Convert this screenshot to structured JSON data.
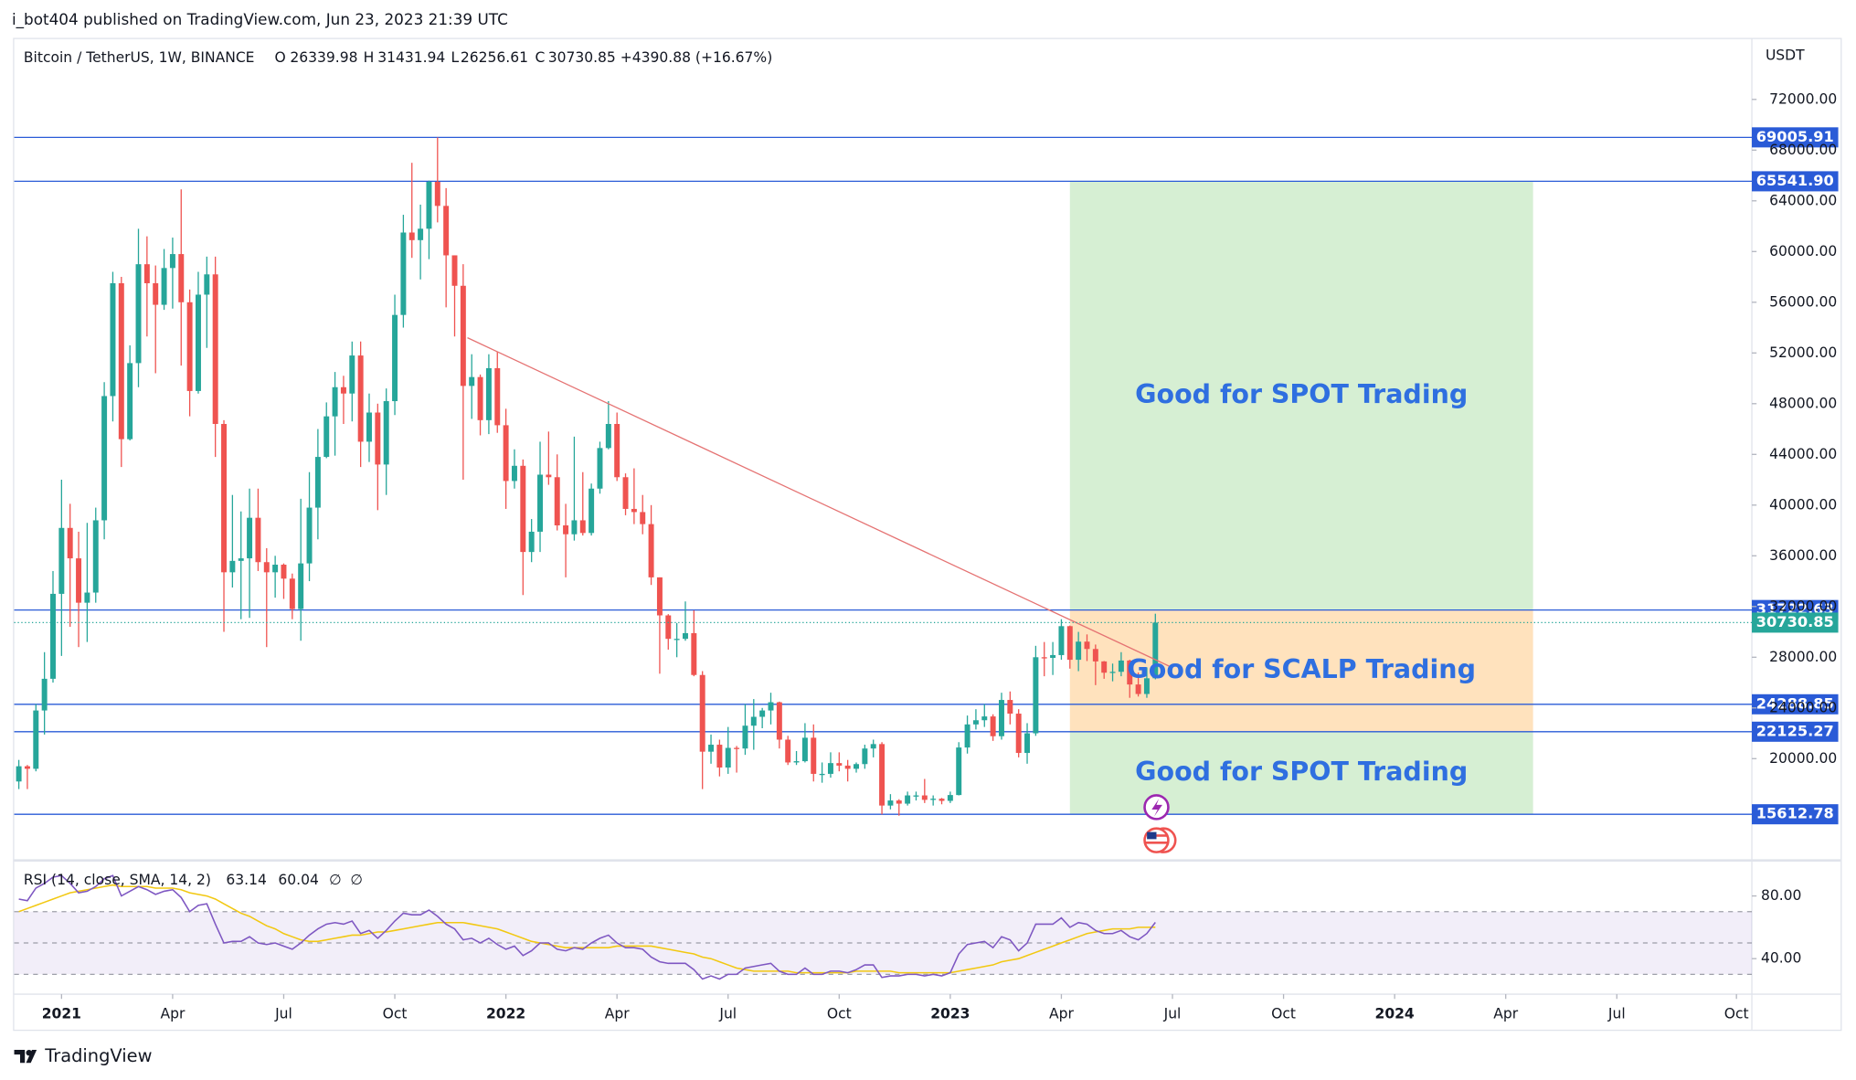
{
  "header": {
    "byline": "i_bot404 published on TradingView.com, Jun 23, 2023 21:39 UTC",
    "footer": "TradingView"
  },
  "chart_data": {
    "type": "candlestick",
    "title": "Bitcoin / TetherUS, 1W, BINANCE",
    "change_label": "+4390.88 (+16.67%)",
    "ohlc_letters": [
      "O",
      "H",
      "L",
      "C"
    ],
    "y_axis_label": "USDT",
    "up_color": "#26a69a",
    "down_color": "#ef5350",
    "x": [
      -5,
      -4,
      -3,
      -2,
      -1,
      0,
      1,
      2,
      3,
      4,
      5,
      6,
      7,
      8,
      9,
      10,
      11,
      12,
      13,
      14,
      15,
      16,
      17,
      18,
      19,
      20,
      21,
      22,
      23,
      24,
      25,
      26,
      27,
      28,
      29,
      30,
      31,
      32,
      33,
      34,
      35,
      36,
      37,
      38,
      39,
      40,
      41,
      42,
      43,
      44,
      45,
      46,
      47,
      48,
      49,
      50,
      51,
      52,
      53,
      54,
      55,
      56,
      57,
      58,
      59,
      60,
      61,
      62,
      63,
      64,
      65,
      66,
      67,
      68,
      69,
      70,
      71,
      72,
      73,
      74,
      75,
      76,
      77,
      78,
      79,
      80,
      81,
      82,
      83,
      84,
      85,
      86,
      87,
      88,
      89,
      90,
      91,
      92,
      93,
      94,
      95,
      96,
      97,
      98,
      99,
      100,
      101,
      102,
      103,
      104,
      105,
      106,
      107,
      108,
      109,
      110,
      111,
      112,
      113,
      114,
      115,
      116,
      117,
      118,
      119,
      120,
      121,
      122,
      123,
      124,
      125,
      126,
      127,
      128
    ],
    "ohlc": [
      [
        18200,
        19900,
        17600,
        19400
      ],
      [
        19400,
        19500,
        17600,
        19200
      ],
      [
        19200,
        24300,
        19000,
        23800
      ],
      [
        23800,
        28400,
        21900,
        26300
      ],
      [
        26300,
        34800,
        26000,
        33000
      ],
      [
        33000,
        42000,
        28100,
        38200
      ],
      [
        38200,
        40100,
        30400,
        35800
      ],
      [
        35800,
        37900,
        28800,
        32300
      ],
      [
        32300,
        38600,
        29200,
        33100
      ],
      [
        33100,
        39800,
        32300,
        38800
      ],
      [
        38800,
        49700,
        37300,
        48600
      ],
      [
        48600,
        58400,
        46600,
        57500
      ],
      [
        57500,
        58000,
        43000,
        45200
      ],
      [
        45200,
        52600,
        45100,
        51200
      ],
      [
        51200,
        61800,
        49300,
        59000
      ],
      [
        59000,
        61200,
        53300,
        57500
      ],
      [
        57500,
        58900,
        50400,
        55800
      ],
      [
        55800,
        60200,
        55400,
        58700
      ],
      [
        58700,
        61100,
        55500,
        59800
      ],
      [
        59800,
        64900,
        51000,
        56000
      ],
      [
        56000,
        57000,
        47000,
        49000
      ],
      [
        49000,
        58400,
        48800,
        56600
      ],
      [
        56600,
        59600,
        52400,
        58200
      ],
      [
        58200,
        59600,
        43800,
        46400
      ],
      [
        46400,
        46700,
        30000,
        34700
      ],
      [
        34700,
        40800,
        33500,
        35600
      ],
      [
        35600,
        39500,
        31000,
        35800
      ],
      [
        35800,
        41300,
        31100,
        39000
      ],
      [
        39000,
        41300,
        34800,
        35500
      ],
      [
        35500,
        36600,
        28800,
        34700
      ],
      [
        34700,
        36000,
        32700,
        35300
      ],
      [
        35300,
        35400,
        32600,
        34200
      ],
      [
        34200,
        34600,
        31000,
        31800
      ],
      [
        31800,
        40500,
        29300,
        35400
      ],
      [
        35400,
        42600,
        34000,
        39800
      ],
      [
        39800,
        46000,
        37300,
        43800
      ],
      [
        43800,
        48100,
        43700,
        47000
      ],
      [
        47000,
        50500,
        43900,
        49300
      ],
      [
        49300,
        50200,
        46400,
        48800
      ],
      [
        48800,
        52900,
        46600,
        51800
      ],
      [
        51800,
        52900,
        43000,
        45000
      ],
      [
        45000,
        48800,
        43400,
        47300
      ],
      [
        47300,
        48000,
        39600,
        43200
      ],
      [
        43200,
        49200,
        40800,
        48200
      ],
      [
        48200,
        56600,
        47100,
        55000
      ],
      [
        55000,
        62900,
        54000,
        61500
      ],
      [
        61500,
        67000,
        59500,
        60900
      ],
      [
        60900,
        63700,
        57800,
        61800
      ],
      [
        61800,
        65600,
        59400,
        65500
      ],
      [
        65500,
        69000,
        62300,
        63600
      ],
      [
        63600,
        65000,
        55600,
        59700
      ],
      [
        59700,
        59700,
        53300,
        57300
      ],
      [
        57300,
        59000,
        42000,
        49400
      ],
      [
        49400,
        51900,
        46800,
        50100
      ],
      [
        50100,
        50300,
        45500,
        46700
      ],
      [
        46700,
        51900,
        45600,
        50800
      ],
      [
        50800,
        52100,
        45700,
        46300
      ],
      [
        46300,
        47600,
        39700,
        41900
      ],
      [
        41900,
        44400,
        41300,
        43100
      ],
      [
        43100,
        43600,
        32900,
        36300
      ],
      [
        36300,
        38900,
        35500,
        37900
      ],
      [
        37900,
        45000,
        36300,
        42400
      ],
      [
        42400,
        45800,
        41600,
        42200
      ],
      [
        42200,
        44000,
        38000,
        38400
      ],
      [
        38400,
        40100,
        34300,
        37700
      ],
      [
        37700,
        45400,
        37200,
        38800
      ],
      [
        38800,
        42600,
        37600,
        37800
      ],
      [
        37800,
        41700,
        37600,
        41300
      ],
      [
        41300,
        45000,
        40900,
        44500
      ],
      [
        44500,
        48200,
        44400,
        46400
      ],
      [
        46400,
        47300,
        41900,
        42200
      ],
      [
        42200,
        42500,
        39200,
        39700
      ],
      [
        39700,
        42900,
        38500,
        39450
      ],
      [
        39450,
        40800,
        37700,
        38500
      ],
      [
        38500,
        40000,
        33700,
        34300
      ],
      [
        34300,
        34300,
        26700,
        31300
      ],
      [
        31300,
        31400,
        28600,
        29450
      ],
      [
        29450,
        30700,
        28000,
        29450
      ],
      [
        29450,
        32400,
        29300,
        29900
      ],
      [
        29900,
        31700,
        26500,
        26600
      ],
      [
        26600,
        26900,
        17600,
        20550
      ],
      [
        20550,
        21900,
        19600,
        21100
      ],
      [
        21100,
        21500,
        18600,
        19300
      ],
      [
        19300,
        22500,
        18800,
        20850
      ],
      [
        20850,
        21000,
        18900,
        20800
      ],
      [
        20800,
        24300,
        20300,
        22600
      ],
      [
        22600,
        24700,
        20700,
        23300
      ],
      [
        23300,
        24000,
        22400,
        23800
      ],
      [
        23800,
        25200,
        22700,
        24450
      ],
      [
        24450,
        24500,
        20800,
        21500
      ],
      [
        21500,
        21800,
        19500,
        19700
      ],
      [
        19700,
        20600,
        19500,
        19800
      ],
      [
        19800,
        22800,
        19700,
        21650
      ],
      [
        21650,
        22700,
        18200,
        18800
      ],
      [
        18800,
        19700,
        18100,
        18800
      ],
      [
        18800,
        20500,
        18500,
        19650
      ],
      [
        19650,
        20500,
        19000,
        19450
      ],
      [
        19450,
        19900,
        18200,
        19200
      ],
      [
        19200,
        19700,
        18900,
        19570
      ],
      [
        19570,
        21100,
        19200,
        20800
      ],
      [
        20800,
        21500,
        20100,
        21150
      ],
      [
        21150,
        21300,
        15600,
        16300
      ],
      [
        16300,
        17200,
        16000,
        16700
      ],
      [
        16700,
        16800,
        15500,
        16450
      ],
      [
        16450,
        17400,
        16300,
        17100
      ],
      [
        17100,
        17400,
        16700,
        17100
      ],
      [
        17100,
        18400,
        16500,
        16750
      ],
      [
        16750,
        17100,
        16300,
        16840
      ],
      [
        16840,
        16900,
        16400,
        16670
      ],
      [
        16670,
        17400,
        16500,
        17130
      ],
      [
        17130,
        21300,
        17100,
        20880
      ],
      [
        20880,
        23400,
        20400,
        22700
      ],
      [
        22700,
        23900,
        22300,
        23030
      ],
      [
        23030,
        24300,
        22500,
        23330
      ],
      [
        23330,
        23500,
        21400,
        21770
      ],
      [
        21770,
        25200,
        21500,
        24630
      ],
      [
        24630,
        25300,
        22700,
        23550
      ],
      [
        23550,
        23900,
        20100,
        20450
      ],
      [
        20450,
        22800,
        19600,
        22000
      ],
      [
        22000,
        28900,
        21800,
        28000
      ],
      [
        28000,
        29200,
        26500,
        27950
      ],
      [
        27950,
        29200,
        26600,
        28170
      ],
      [
        28170,
        31000,
        27800,
        30450
      ],
      [
        30450,
        30500,
        27100,
        27800
      ],
      [
        27800,
        30000,
        26900,
        29230
      ],
      [
        29230,
        29800,
        27700,
        28650
      ],
      [
        28650,
        29000,
        25800,
        27670
      ],
      [
        27670,
        27700,
        26300,
        26780
      ],
      [
        26780,
        27500,
        26100,
        26850
      ],
      [
        26850,
        28400,
        26500,
        27740
      ],
      [
        27740,
        27800,
        24800,
        25850
      ],
      [
        25850,
        26800,
        24900,
        25100
      ],
      [
        25100,
        27200,
        24800,
        26340
      ],
      [
        26339.98,
        31431.94,
        26256.61,
        30730.85
      ]
    ],
    "xlim": [
      -5.54,
      197.8
    ],
    "xticks": [
      {
        "value": 0,
        "label": "2021"
      },
      {
        "value": 13,
        "label": "Apr"
      },
      {
        "value": 26,
        "label": "Jul"
      },
      {
        "value": 39,
        "label": "Oct"
      },
      {
        "value": 52,
        "label": "2022"
      },
      {
        "value": 65,
        "label": "Apr"
      },
      {
        "value": 78,
        "label": "Jul"
      },
      {
        "value": 91,
        "label": "Oct"
      },
      {
        "value": 104,
        "label": "2023"
      },
      {
        "value": 117,
        "label": "Apr"
      },
      {
        "value": 130,
        "label": "Jul"
      },
      {
        "value": 143,
        "label": "Oct"
      },
      {
        "value": 156,
        "label": "2024"
      },
      {
        "value": 169,
        "label": "Apr"
      },
      {
        "value": 182,
        "label": "Jul"
      },
      {
        "value": 196,
        "label": "Oct"
      }
    ],
    "ylim": [
      12158,
      76852
    ],
    "yticks": [
      {
        "value": 20000,
        "label": "20000.00"
      },
      {
        "value": 24000,
        "label": "24000.00"
      },
      {
        "value": 28000,
        "label": "28000.00"
      },
      {
        "value": 32000,
        "label": "32000.00"
      },
      {
        "value": 36000,
        "label": "36000.00"
      },
      {
        "value": 40000,
        "label": "40000.00"
      },
      {
        "value": 44000,
        "label": "44000.00"
      },
      {
        "value": 48000,
        "label": "48000.00"
      },
      {
        "value": 52000,
        "label": "52000.00"
      },
      {
        "value": 56000,
        "label": "56000.00"
      },
      {
        "value": 60000,
        "label": "60000.00"
      },
      {
        "value": 64000,
        "label": "64000.00"
      },
      {
        "value": 68000,
        "label": "68000.00"
      },
      {
        "value": 72000,
        "label": "72000.00"
      }
    ],
    "levels": [
      69005.91,
      {
        "value": 65541.9,
        "label": "65541.90"
      },
      31722.63,
      24288.85,
      22125.27,
      15612.78
    ],
    "level_color": "#2a5bd7",
    "trendline": {
      "x": [
        47.5,
        129.6
      ],
      "y": [
        53200,
        27300
      ],
      "color": "#e57373"
    },
    "zones": [
      {
        "label": "Good for SPOT Trading",
        "x": [
          118,
          172.2
        ],
        "y": [
          31722.63,
          65541.9
        ],
        "color": "#d6efd3"
      },
      {
        "label": "Good for SCALP Trading",
        "x": [
          118,
          172.2
        ],
        "y": [
          22125.27,
          31722.63
        ],
        "color": "#ffe2bd"
      },
      {
        "label": "Good for SPOT Trading",
        "x": [
          118,
          172.2
        ],
        "y": [
          15612.78,
          22125.27
        ],
        "color": "#d6efd3"
      }
    ],
    "rsi": {
      "name": "RSI (14, close, SMA, 14, 2)",
      "color": "#7e57c2",
      "sma_color": "#f2c811",
      "null_labels": [
        "∅",
        "∅"
      ],
      "values": [
        78,
        77,
        85,
        88,
        92,
        93,
        88,
        82,
        83,
        86,
        91,
        93,
        80,
        83,
        86,
        84,
        81,
        83,
        84,
        79,
        70,
        74,
        75,
        62,
        50,
        51,
        51,
        54,
        50,
        49,
        50,
        48,
        46,
        50,
        55,
        59,
        62,
        63,
        62,
        64,
        56,
        58,
        53,
        58,
        64,
        69,
        68,
        68,
        71,
        67,
        62,
        59,
        52,
        53,
        50,
        53,
        49,
        46,
        48,
        42,
        45,
        50,
        50,
        46,
        45,
        47,
        46,
        50,
        53,
        55,
        50,
        47,
        47,
        46,
        41,
        38,
        37,
        37,
        37,
        33,
        27,
        29,
        27,
        30,
        30,
        34,
        35,
        36,
        37,
        32,
        30,
        30,
        34,
        30,
        30,
        32,
        32,
        31,
        33,
        36,
        36,
        28,
        29,
        29,
        30,
        30,
        29,
        30,
        29,
        31,
        43,
        49,
        50,
        51,
        47,
        54,
        52,
        45,
        50,
        62,
        62,
        62,
        66,
        60,
        63,
        62,
        58,
        56,
        56,
        58,
        54,
        52,
        56,
        63.14
      ],
      "sma": [
        70,
        72,
        74,
        76,
        78,
        80,
        82,
        83,
        84,
        85,
        86,
        87,
        86,
        86,
        86,
        86,
        85,
        85,
        85,
        84,
        82,
        81,
        80,
        78,
        75,
        72,
        69,
        67,
        64,
        61,
        59,
        56,
        54,
        52,
        51,
        51,
        52,
        53,
        54,
        55,
        55,
        56,
        57,
        57,
        58,
        59,
        60,
        61,
        62,
        63,
        63,
        63,
        63,
        62,
        61,
        60,
        59,
        57,
        55,
        53,
        51,
        50,
        49,
        48,
        47,
        47,
        47,
        47,
        47,
        47,
        48,
        48,
        48,
        48,
        48,
        47,
        46,
        45,
        44,
        43,
        41,
        40,
        38,
        36,
        34,
        33,
        32,
        32,
        32,
        32,
        32,
        31,
        31,
        31,
        31,
        31,
        31,
        31,
        32,
        32,
        32,
        32,
        32,
        31,
        31,
        31,
        31,
        31,
        31,
        31,
        32,
        33,
        34,
        35,
        36,
        38,
        39,
        40,
        42,
        44,
        46,
        48,
        50,
        52,
        54,
        56,
        57,
        58,
        59,
        59,
        59,
        60,
        60,
        60.04
      ],
      "ylim": [
        19.6,
        100.4
      ],
      "yticks": [
        {
          "value": 80,
          "label": "80.00"
        },
        {
          "value": 40,
          "label": "40.00"
        }
      ],
      "levels": [
        70,
        50,
        30
      ]
    }
  }
}
